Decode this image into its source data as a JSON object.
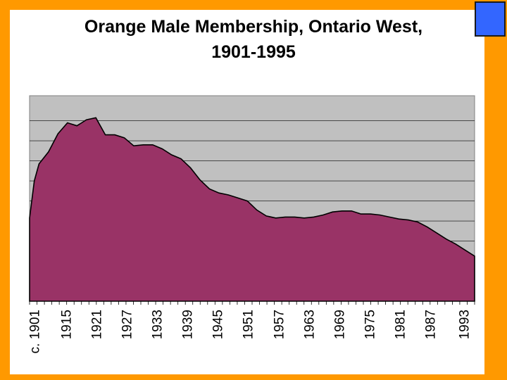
{
  "colors": {
    "frame": "#FF9900",
    "slide": "#FFFFFF",
    "plot_bg": "#C0C0C0",
    "area_fill": "#993366",
    "corner_box": "#3366FF"
  },
  "chart_data": {
    "type": "area",
    "title": "Orange Male Membership, Ontario West, 1901-1995",
    "xlabel": "",
    "ylabel": "",
    "y_tick_labels_visible": false,
    "grid": true,
    "legend": "none",
    "tick_labels": [
      "c. 1901",
      "1915",
      "1921",
      "1927",
      "1933",
      "1939",
      "1945",
      "1951",
      "1957",
      "1963",
      "1969",
      "1975",
      "1981",
      "1987",
      "1993"
    ],
    "x": [
      1901,
      1902,
      1903,
      1905,
      1907,
      1909,
      1911,
      1912,
      1913,
      1915,
      1917,
      1919,
      1921,
      1923,
      1925,
      1927,
      1929,
      1931,
      1933,
      1935,
      1937,
      1939,
      1941,
      1943,
      1945,
      1947,
      1949,
      1951,
      1953,
      1955,
      1957,
      1959,
      1961,
      1963,
      1965,
      1967,
      1969,
      1971,
      1973,
      1975,
      1977,
      1979,
      1981,
      1983,
      1985,
      1987,
      1989,
      1991,
      1993,
      1995
    ],
    "values": [
      8.3,
      12.0,
      13.7,
      14.9,
      16.7,
      17.8,
      17.5,
      17.8,
      18.1,
      18.3,
      16.6,
      16.6,
      16.3,
      15.5,
      15.6,
      15.6,
      15.2,
      14.6,
      14.2,
      13.3,
      12.1,
      11.2,
      10.8,
      10.6,
      10.3,
      10.0,
      9.1,
      8.5,
      8.3,
      8.4,
      8.4,
      8.3,
      8.4,
      8.6,
      8.9,
      9.0,
      9.0,
      8.7,
      8.7,
      8.6,
      8.4,
      8.2,
      8.1,
      7.9,
      7.4,
      6.8,
      6.2,
      5.7,
      5.1,
      4.5
    ]
  }
}
